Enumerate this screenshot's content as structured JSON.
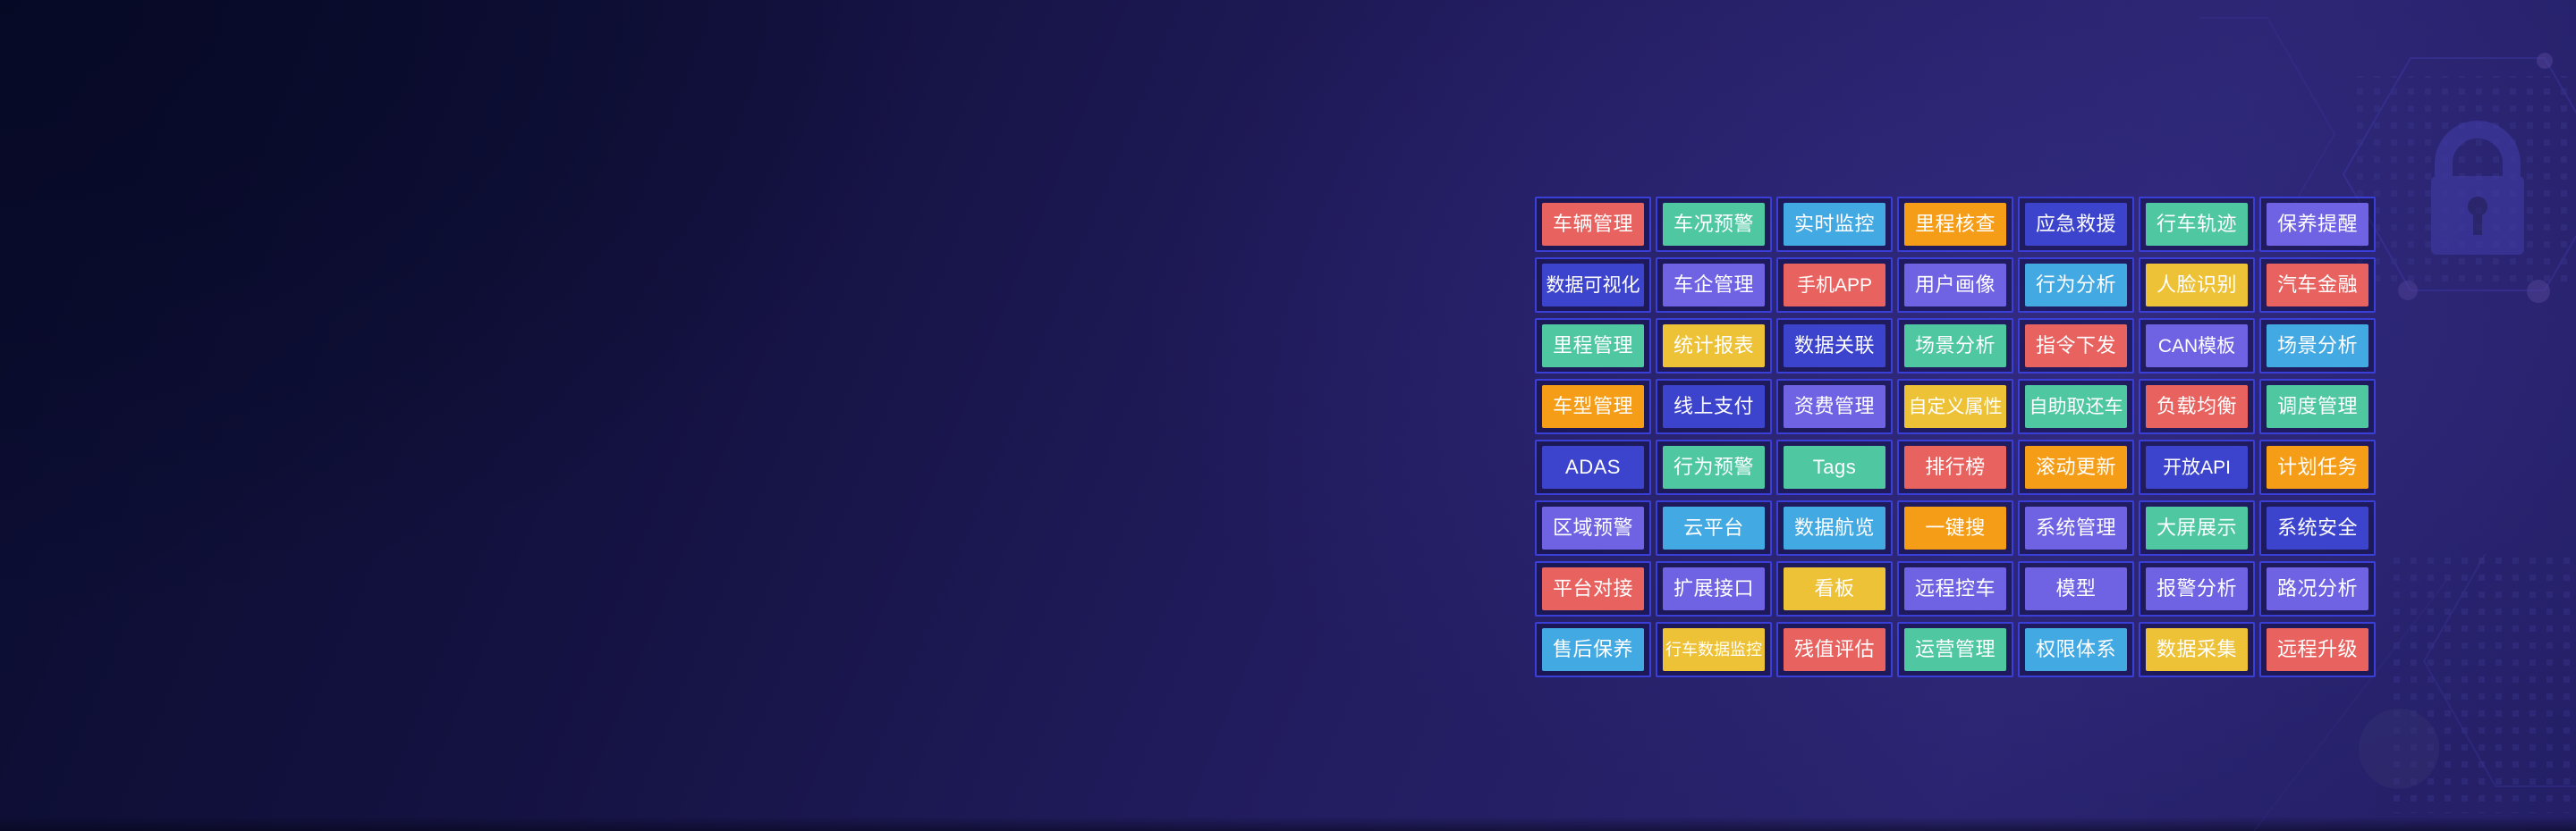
{
  "page": {
    "background": {
      "dark_corner": "#0a0c2e",
      "mid_indigo": "#221d60",
      "bright_purple": "#2a2470"
    },
    "decor_icons": [
      "lock-icon",
      "hexagon-pattern",
      "dot-grid-pattern",
      "glow-dot"
    ]
  },
  "palette": {
    "red": "#e8625f",
    "teal": "#4fc7a1",
    "blue": "#43a9e2",
    "orange": "#f69d17",
    "indigo": "#3c43cd",
    "purple": "#6f63e4",
    "yellow": "#eec236",
    "cell_border": "#3a3fd8",
    "tile_text": "#ffffff"
  },
  "feature_grid": {
    "columns": 7,
    "rows": 8,
    "tiles": [
      {
        "label": "车辆管理",
        "color": "red"
      },
      {
        "label": "车况预警",
        "color": "teal"
      },
      {
        "label": "实时监控",
        "color": "blue"
      },
      {
        "label": "里程核查",
        "color": "orange"
      },
      {
        "label": "应急救援",
        "color": "indigo"
      },
      {
        "label": "行车轨迹",
        "color": "teal"
      },
      {
        "label": "保养提醒",
        "color": "purple"
      },
      {
        "label": "数据可视化",
        "color": "indigo"
      },
      {
        "label": "车企管理",
        "color": "purple"
      },
      {
        "label": "手机APP",
        "color": "red"
      },
      {
        "label": "用户画像",
        "color": "purple"
      },
      {
        "label": "行为分析",
        "color": "blue"
      },
      {
        "label": "人脸识别",
        "color": "yellow"
      },
      {
        "label": "汽车金融",
        "color": "red"
      },
      {
        "label": "里程管理",
        "color": "teal"
      },
      {
        "label": "统计报表",
        "color": "yellow"
      },
      {
        "label": "数据关联",
        "color": "indigo"
      },
      {
        "label": "场景分析",
        "color": "teal"
      },
      {
        "label": "指令下发",
        "color": "red"
      },
      {
        "label": "CAN模板",
        "color": "purple"
      },
      {
        "label": "场景分析",
        "color": "blue"
      },
      {
        "label": "车型管理",
        "color": "orange"
      },
      {
        "label": "线上支付",
        "color": "indigo"
      },
      {
        "label": "资费管理",
        "color": "purple"
      },
      {
        "label": "自定义属性",
        "color": "yellow"
      },
      {
        "label": "自助取还车",
        "color": "teal"
      },
      {
        "label": "负载均衡",
        "color": "red"
      },
      {
        "label": "调度管理",
        "color": "teal"
      },
      {
        "label": "ADAS",
        "color": "indigo"
      },
      {
        "label": "行为预警",
        "color": "teal"
      },
      {
        "label": "Tags",
        "color": "teal"
      },
      {
        "label": "排行榜",
        "color": "red"
      },
      {
        "label": "滚动更新",
        "color": "orange"
      },
      {
        "label": "开放API",
        "color": "indigo"
      },
      {
        "label": "计划任务",
        "color": "orange"
      },
      {
        "label": "区域预警",
        "color": "purple"
      },
      {
        "label": "云平台",
        "color": "blue"
      },
      {
        "label": "数据航览",
        "color": "blue"
      },
      {
        "label": "一键搜",
        "color": "orange"
      },
      {
        "label": "系统管理",
        "color": "purple"
      },
      {
        "label": "大屏展示",
        "color": "teal"
      },
      {
        "label": "系统安全",
        "color": "indigo"
      },
      {
        "label": "平台对接",
        "color": "red"
      },
      {
        "label": "扩展接口",
        "color": "purple"
      },
      {
        "label": "看板",
        "color": "yellow"
      },
      {
        "label": "远程控车",
        "color": "purple"
      },
      {
        "label": "模型",
        "color": "purple"
      },
      {
        "label": "报警分析",
        "color": "purple"
      },
      {
        "label": "路况分析",
        "color": "purple"
      },
      {
        "label": "售后保养",
        "color": "blue"
      },
      {
        "label": "行车数据监控",
        "color": "yellow"
      },
      {
        "label": "残值评估",
        "color": "red"
      },
      {
        "label": "运营管理",
        "color": "teal"
      },
      {
        "label": "权限体系",
        "color": "blue"
      },
      {
        "label": "数据采集",
        "color": "yellow"
      },
      {
        "label": "远程升级",
        "color": "red"
      }
    ]
  }
}
